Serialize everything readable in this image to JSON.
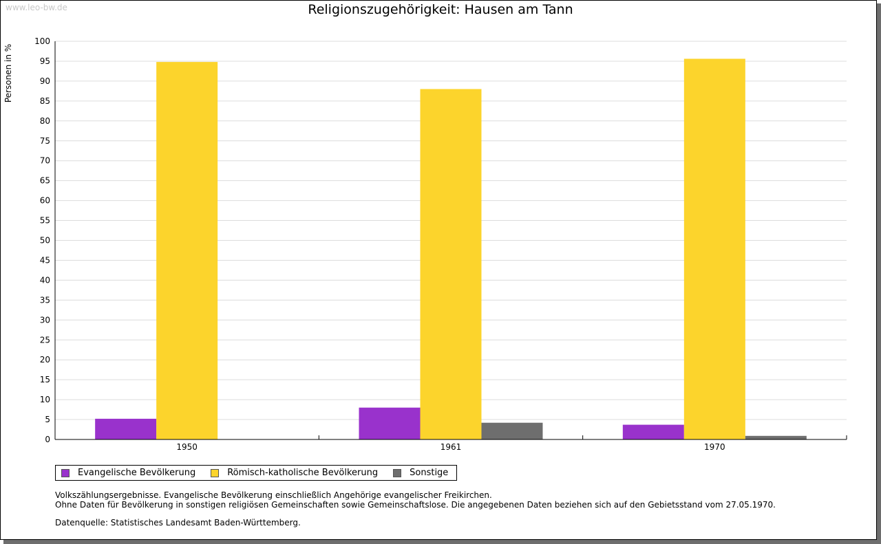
{
  "watermark": "www.leo-bw.de",
  "chart_data": {
    "type": "bar",
    "title": "Religionszugehörigkeit: Hausen am Tann",
    "xlabel": "",
    "ylabel": "Personen in %",
    "ylim": [
      0,
      100
    ],
    "ytick_step": 5,
    "grid": true,
    "categories": [
      "1950",
      "1961",
      "1970"
    ],
    "series": [
      {
        "name": "Evangelische Bevölkerung",
        "color": "#9932cc",
        "values": [
          5.2,
          8.0,
          3.7
        ]
      },
      {
        "name": "Römisch-katholische Bevölkerung",
        "color": "#fcd42c",
        "values": [
          94.8,
          88.0,
          95.6
        ]
      },
      {
        "name": "Sonstige",
        "color": "#6e6e6e",
        "values": [
          null,
          4.2,
          0.9
        ]
      }
    ],
    "legend_position": "bottom-left"
  },
  "notes": {
    "line1": "Volkszählungsergebnisse. Evangelische Bevölkerung einschließlich Angehörige evangelischer Freikirchen.",
    "line2": "Ohne Daten für Bevölkerung in sonstigen religiösen Gemeinschaften sowie Gemeinschaftslose. Die angegebenen Daten beziehen sich auf den Gebietsstand vom 27.05.1970.",
    "source": "Datenquelle: Statistisches Landesamt Baden-Württemberg."
  }
}
